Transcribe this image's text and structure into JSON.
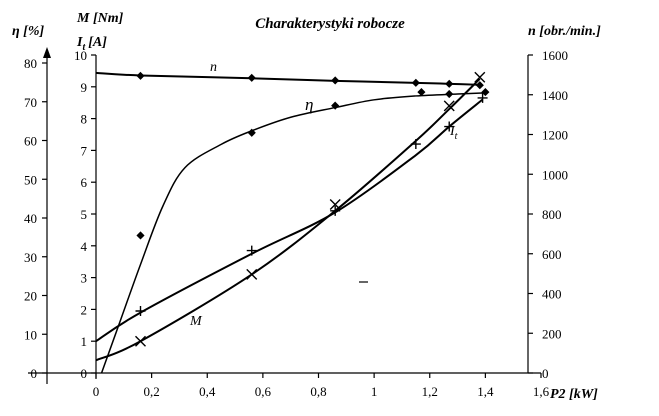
{
  "chart_data": {
    "type": "line",
    "title": "Charakterystyki robocze",
    "xlabel": "P2 [kW]",
    "x_ticks": [
      "0",
      "0,2",
      "0,4",
      "0,6",
      "0,8",
      "1",
      "1,2",
      "1,4",
      "1,6"
    ],
    "xlim": [
      0,
      1.6
    ],
    "axes": {
      "eta": {
        "label": "η [%]",
        "ticks": [
          "0",
          "10",
          "20",
          "30",
          "40",
          "50",
          "60",
          "70",
          "80"
        ],
        "range": [
          0,
          80
        ]
      },
      "M_It": {
        "label_line1": "M [Nm]",
        "label_line2_main": "I",
        "label_line2_sub": "t",
        "label_line2_unit": "[A]",
        "ticks": [
          "0",
          "1",
          "2",
          "3",
          "4",
          "5",
          "6",
          "7",
          "8",
          "9",
          "10"
        ],
        "range": [
          0,
          10
        ]
      },
      "n": {
        "label": "n [obr./min.]",
        "ticks": [
          "0",
          "200",
          "400",
          "600",
          "800",
          "1000",
          "1200",
          "1400",
          "1600"
        ],
        "range": [
          0,
          1600
        ]
      }
    },
    "series": [
      {
        "name": "n",
        "axis": "n",
        "marker": "diamond",
        "points": [
          [
            0.16,
            1495
          ],
          [
            0.56,
            1485
          ],
          [
            0.86,
            1472
          ],
          [
            1.15,
            1460
          ],
          [
            1.27,
            1455
          ],
          [
            1.38,
            1448
          ]
        ],
        "curve": [
          [
            0,
            1510
          ],
          [
            0.16,
            1497
          ],
          [
            0.56,
            1483
          ],
          [
            0.86,
            1470
          ],
          [
            1.15,
            1460
          ],
          [
            1.27,
            1455
          ],
          [
            1.38,
            1450
          ]
        ]
      },
      {
        "name": "η",
        "axis": "eta",
        "marker": "diamond",
        "points": [
          [
            0.16,
            35.5
          ],
          [
            0.56,
            62
          ],
          [
            0.86,
            69
          ],
          [
            1.17,
            72.5
          ],
          [
            1.27,
            72
          ],
          [
            1.4,
            72.5
          ]
        ],
        "curve": [
          [
            0.02,
            0
          ],
          [
            0.08,
            12
          ],
          [
            0.16,
            28
          ],
          [
            0.24,
            43
          ],
          [
            0.32,
            53
          ],
          [
            0.45,
            59
          ],
          [
            0.56,
            62.5
          ],
          [
            0.7,
            66
          ],
          [
            0.86,
            68.5
          ],
          [
            1.0,
            70.5
          ],
          [
            1.15,
            71.5
          ],
          [
            1.3,
            72
          ],
          [
            1.4,
            72.3
          ]
        ]
      },
      {
        "name": "I",
        "name_sub": "t",
        "axis": "M_It",
        "marker": "plus",
        "points": [
          [
            0.16,
            1.95
          ],
          [
            0.56,
            3.85
          ],
          [
            0.86,
            5.1
          ],
          [
            1.15,
            7.2
          ],
          [
            1.27,
            7.75
          ],
          [
            1.39,
            8.65
          ]
        ],
        "curve": [
          [
            0,
            1.0
          ],
          [
            0.16,
            1.9
          ],
          [
            0.56,
            3.75
          ],
          [
            0.86,
            5.05
          ],
          [
            1.15,
            6.85
          ],
          [
            1.27,
            7.75
          ],
          [
            1.39,
            8.6
          ]
        ]
      },
      {
        "name": "M",
        "axis": "M_It",
        "marker": "cross",
        "points": [
          [
            0.16,
            1.0
          ],
          [
            0.56,
            3.1
          ],
          [
            0.86,
            5.3
          ],
          [
            1.27,
            8.4
          ],
          [
            1.38,
            9.3
          ]
        ],
        "curve": [
          [
            0,
            0.4
          ],
          [
            0.16,
            1.0
          ],
          [
            0.56,
            3.1
          ],
          [
            0.86,
            5.1
          ],
          [
            1.15,
            7.3
          ],
          [
            1.27,
            8.3
          ],
          [
            1.38,
            9.25
          ]
        ]
      }
    ]
  }
}
